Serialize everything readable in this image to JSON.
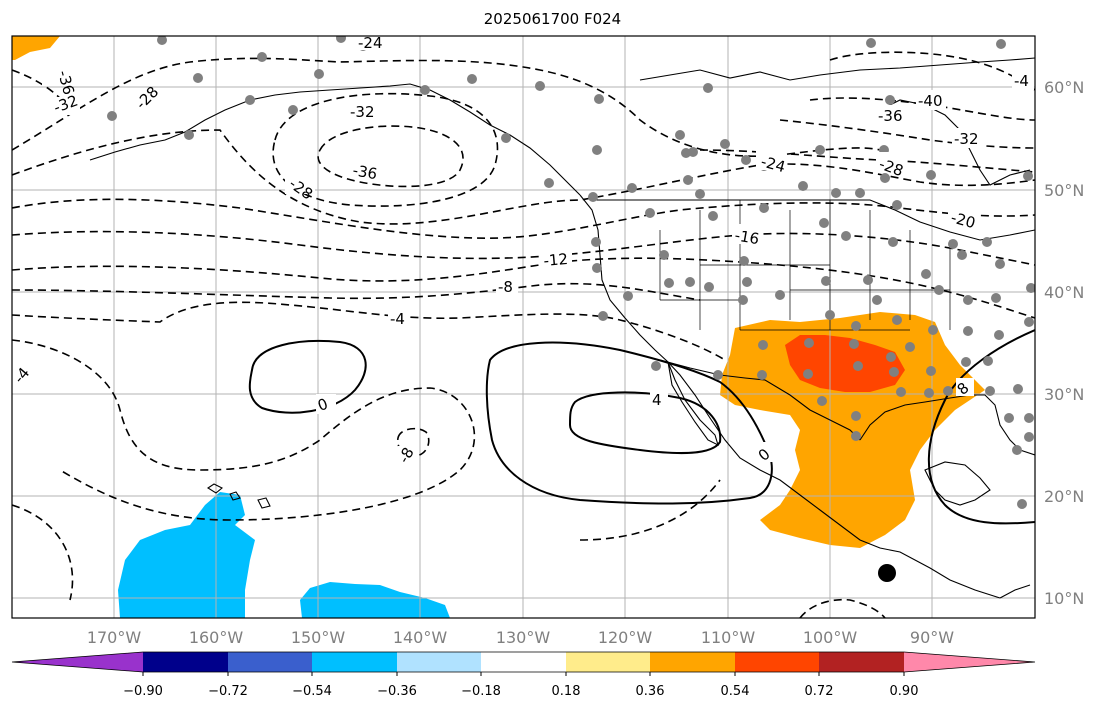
{
  "title": "2025061700 F024",
  "longitude_labels": [
    "170°W",
    "160°W",
    "150°W",
    "140°W",
    "130°W",
    "120°W",
    "110°W",
    "100°W",
    "90°W"
  ],
  "latitude_labels": [
    "60°N",
    "50°N",
    "40°N",
    "30°N",
    "20°N",
    "10°N"
  ],
  "contour_labels": {
    "negative": [
      "-36",
      "-32",
      "-28",
      "-24",
      "-32",
      "-36",
      "-28",
      "-24",
      "-16",
      "-12",
      "-8",
      "-4",
      "-40",
      "-36",
      "-32",
      "-28",
      "-20",
      "-4",
      "-8",
      "-4"
    ],
    "zero": [
      "0",
      "0"
    ]
  },
  "colorbar": {
    "tick_labels": [
      "−0.90",
      "−0.72",
      "−0.54",
      "−0.36",
      "−0.18",
      "0.18",
      "0.36",
      "0.54",
      "0.72",
      "0.90"
    ],
    "colors": [
      "#9932cc",
      "#00008b",
      "#3a5fcd",
      "#00bfff",
      "#b0e2ff",
      "#ffffff",
      "#ffec8b",
      "#ffa500",
      "#ff4500",
      "#b22222",
      "#ff88aa"
    ]
  },
  "colors": {
    "land_outline": "#000000",
    "grid": "#b3b3b3",
    "station_dot": "#808080",
    "positive_fill_1": "#ffa500",
    "positive_fill_2": "#ff4500",
    "negative_fill": "#00bfff"
  }
}
